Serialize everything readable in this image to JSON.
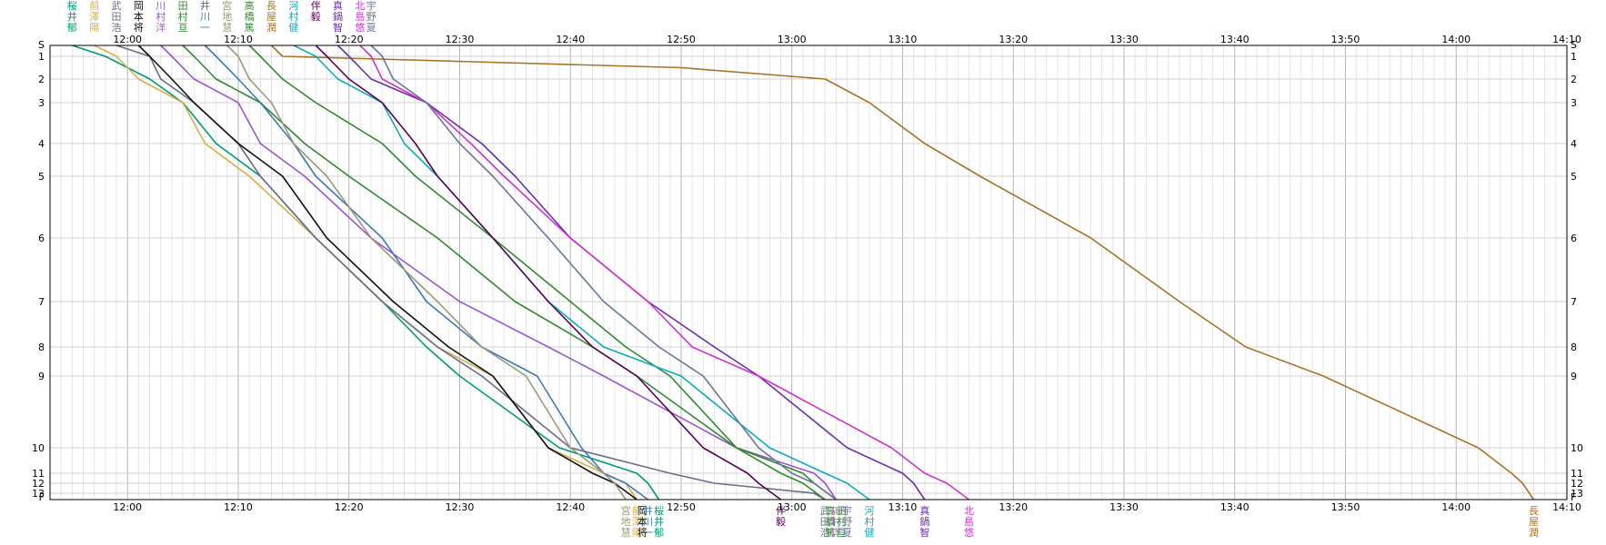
{
  "chart_data": {
    "type": "line",
    "title": "",
    "xlabel": "",
    "ylabel": "",
    "grid": true,
    "x_axis": {
      "start": "11:53",
      "end": "14:10",
      "tick_labels": [
        "12:00",
        "12:10",
        "12:20",
        "12:30",
        "12:40",
        "12:50",
        "13:00",
        "13:10",
        "13:20",
        "13:30",
        "13:40",
        "13:50",
        "14:00",
        "14:10"
      ]
    },
    "y_axis": {
      "inverted": true,
      "categories": [
        "S",
        "1",
        "2",
        "3",
        "4",
        "5",
        "6",
        "7",
        "8",
        "9",
        "10",
        "11",
        "12",
        "13",
        "F"
      ]
    },
    "series": [
      {
        "name": "桜井郁",
        "color": "#009977",
        "points": [
          [
            "11:55",
            "S"
          ],
          [
            "11:58",
            "1"
          ],
          [
            "12:02",
            "2"
          ],
          [
            "12:05",
            "3"
          ],
          [
            "12:08",
            "4"
          ],
          [
            "12:12",
            "5"
          ],
          [
            "12:17",
            "6"
          ],
          [
            "12:23",
            "7"
          ],
          [
            "12:27",
            "8"
          ],
          [
            "12:30",
            "9"
          ],
          [
            "12:39",
            "10"
          ],
          [
            "12:46",
            "11"
          ],
          [
            "12:47",
            "12"
          ],
          [
            "12:48",
            "F"
          ]
        ]
      },
      {
        "name": "前澤陽",
        "color": "#d4b04a",
        "points": [
          [
            "11:57",
            "S"
          ],
          [
            "11:59",
            "1"
          ],
          [
            "12:01",
            "2"
          ],
          [
            "12:05",
            "3"
          ],
          [
            "12:07",
            "4"
          ],
          [
            "12:11",
            "5"
          ],
          [
            "12:17",
            "6"
          ],
          [
            "12:23",
            "7"
          ],
          [
            "12:28",
            "8"
          ],
          [
            "12:33",
            "9"
          ],
          [
            "12:38",
            "10"
          ],
          [
            "12:43",
            "11"
          ],
          [
            "12:45",
            "12"
          ],
          [
            "12:46",
            "F"
          ]
        ]
      },
      {
        "name": "武田浩",
        "color": "#6b6b8c",
        "points": [
          [
            "11:59",
            "S"
          ],
          [
            "12:02",
            "1"
          ],
          [
            "12:03",
            "2"
          ],
          [
            "12:06",
            "3"
          ],
          [
            "12:10",
            "4"
          ],
          [
            "12:12",
            "5"
          ],
          [
            "12:17",
            "6"
          ],
          [
            "12:23",
            "7"
          ],
          [
            "12:28",
            "8"
          ],
          [
            "12:32",
            "9"
          ],
          [
            "12:40",
            "10"
          ],
          [
            "12:49",
            "11"
          ],
          [
            "12:53",
            "12"
          ],
          [
            "13:02",
            "13"
          ],
          [
            "13:03",
            "F"
          ]
        ]
      },
      {
        "name": "岡本将",
        "color": "#111111",
        "points": [
          [
            "12:01",
            "S"
          ],
          [
            "12:02",
            "1"
          ],
          [
            "12:04",
            "2"
          ],
          [
            "12:06",
            "3"
          ],
          [
            "12:10",
            "4"
          ],
          [
            "12:14",
            "5"
          ],
          [
            "12:18",
            "6"
          ],
          [
            "12:24",
            "7"
          ],
          [
            "12:29",
            "8"
          ],
          [
            "12:33",
            "9"
          ],
          [
            "12:38",
            "10"
          ],
          [
            "12:42",
            "11"
          ],
          [
            "12:44",
            "12"
          ],
          [
            "12:46",
            "F"
          ]
        ]
      },
      {
        "name": "川村洋",
        "color": "#9955cc",
        "points": [
          [
            "12:03",
            "S"
          ],
          [
            "12:04",
            "1"
          ],
          [
            "12:06",
            "2"
          ],
          [
            "12:10",
            "3"
          ],
          [
            "12:12",
            "4"
          ],
          [
            "12:16",
            "5"
          ],
          [
            "12:22",
            "6"
          ],
          [
            "12:30",
            "7"
          ],
          [
            "12:38",
            "8"
          ],
          [
            "12:43",
            "9"
          ],
          [
            "12:55",
            "10"
          ],
          [
            "13:02",
            "11"
          ],
          [
            "13:03",
            "12"
          ],
          [
            "13:04",
            "F"
          ]
        ]
      },
      {
        "name": "田村亘",
        "color": "#2f8a2f",
        "points": [
          [
            "12:05",
            "S"
          ],
          [
            "12:06",
            "1"
          ],
          [
            "12:08",
            "2"
          ],
          [
            "12:12",
            "3"
          ],
          [
            "12:16",
            "4"
          ],
          [
            "12:20",
            "5"
          ],
          [
            "12:28",
            "6"
          ],
          [
            "12:35",
            "7"
          ],
          [
            "12:42",
            "8"
          ],
          [
            "12:46",
            "9"
          ],
          [
            "12:55",
            "10"
          ],
          [
            "13:01",
            "11"
          ],
          [
            "13:02",
            "12"
          ],
          [
            "13:04",
            "F"
          ]
        ]
      },
      {
        "name": "井川一",
        "color": "#3d7ab5",
        "points": [
          [
            "12:07",
            "S"
          ],
          [
            "12:08",
            "1"
          ],
          [
            "12:10",
            "2"
          ],
          [
            "12:12",
            "3"
          ],
          [
            "12:15",
            "4"
          ],
          [
            "12:17",
            "5"
          ],
          [
            "12:23",
            "6"
          ],
          [
            "12:27",
            "7"
          ],
          [
            "12:32",
            "8"
          ],
          [
            "12:37",
            "9"
          ],
          [
            "12:41",
            "10"
          ],
          [
            "12:43",
            "11"
          ],
          [
            "12:45",
            "12"
          ],
          [
            "12:47",
            "F"
          ]
        ]
      },
      {
        "name": "宮地慧",
        "color": "#999977",
        "points": [
          [
            "12:09",
            "S"
          ],
          [
            "12:10",
            "1"
          ],
          [
            "12:11",
            "2"
          ],
          [
            "12:13",
            "3"
          ],
          [
            "12:15",
            "4"
          ],
          [
            "12:18",
            "5"
          ],
          [
            "12:22",
            "6"
          ],
          [
            "12:28",
            "7"
          ],
          [
            "12:32",
            "8"
          ],
          [
            "12:36",
            "9"
          ],
          [
            "12:40",
            "10"
          ],
          [
            "12:43",
            "11"
          ],
          [
            "12:44",
            "12"
          ],
          [
            "12:45",
            "F"
          ]
        ]
      },
      {
        "name": "高橋篤",
        "color": "#2f8a2f",
        "points": [
          [
            "12:11",
            "S"
          ],
          [
            "12:12",
            "1"
          ],
          [
            "12:14",
            "2"
          ],
          [
            "12:17",
            "3"
          ],
          [
            "12:23",
            "4"
          ],
          [
            "12:26",
            "5"
          ],
          [
            "12:33",
            "6"
          ],
          [
            "12:40",
            "7"
          ],
          [
            "12:45",
            "8"
          ],
          [
            "12:49",
            "9"
          ],
          [
            "12:55",
            "10"
          ],
          [
            "12:59",
            "11"
          ],
          [
            "13:01",
            "12"
          ],
          [
            "13:03",
            "F"
          ]
        ]
      },
      {
        "name": "長屋潤",
        "color": "#a87228",
        "points": [
          [
            "12:13",
            "S"
          ],
          [
            "12:14",
            "1"
          ],
          [
            "12:50",
            "1.5"
          ],
          [
            "13:03",
            "2"
          ],
          [
            "13:07",
            "3"
          ],
          [
            "13:12",
            "4"
          ],
          [
            "13:17",
            "5"
          ],
          [
            "13:27",
            "6"
          ],
          [
            "13:35",
            "7"
          ],
          [
            "13:41",
            "8"
          ],
          [
            "13:48",
            "9"
          ],
          [
            "14:02",
            "10"
          ],
          [
            "14:05",
            "11"
          ],
          [
            "14:06",
            "12"
          ],
          [
            "14:07",
            "F"
          ]
        ]
      },
      {
        "name": "河村健",
        "color": "#11aabb",
        "points": [
          [
            "12:15",
            "S"
          ],
          [
            "12:17",
            "1"
          ],
          [
            "12:19",
            "2"
          ],
          [
            "12:23",
            "3"
          ],
          [
            "12:25",
            "4"
          ],
          [
            "12:28",
            "5"
          ],
          [
            "12:33",
            "6"
          ],
          [
            "12:38",
            "7"
          ],
          [
            "12:43",
            "8"
          ],
          [
            "12:50",
            "9"
          ],
          [
            "12:58",
            "10"
          ],
          [
            "13:03",
            "11"
          ],
          [
            "13:05",
            "12"
          ],
          [
            "13:07",
            "F"
          ]
        ]
      },
      {
        "name": "伴毅",
        "color": "#550055",
        "points": [
          [
            "12:17",
            "S"
          ],
          [
            "12:18",
            "1"
          ],
          [
            "12:20",
            "2"
          ],
          [
            "12:23",
            "3"
          ],
          [
            "12:26",
            "4"
          ],
          [
            "12:28",
            "5"
          ],
          [
            "12:33",
            "6"
          ],
          [
            "12:38",
            "7"
          ],
          [
            "12:42",
            "8"
          ],
          [
            "12:46",
            "9"
          ],
          [
            "12:52",
            "10"
          ],
          [
            "12:56",
            "11"
          ],
          [
            "12:57",
            "12"
          ],
          [
            "12:59",
            "F"
          ]
        ]
      },
      {
        "name": "真鍋智",
        "color": "#6a2fa8",
        "points": [
          [
            "12:19",
            "S"
          ],
          [
            "12:20",
            "1"
          ],
          [
            "12:22",
            "2"
          ],
          [
            "12:27",
            "3"
          ],
          [
            "12:32",
            "4"
          ],
          [
            "12:35",
            "5"
          ],
          [
            "12:40",
            "6"
          ],
          [
            "12:47",
            "7"
          ],
          [
            "12:53",
            "8"
          ],
          [
            "12:57",
            "9"
          ],
          [
            "13:05",
            "10"
          ],
          [
            "13:10",
            "11"
          ],
          [
            "13:11",
            "12"
          ],
          [
            "13:12",
            "F"
          ]
        ]
      },
      {
        "name": "北島悠",
        "color": "#cc33cc",
        "points": [
          [
            "12:21",
            "S"
          ],
          [
            "12:22",
            "1"
          ],
          [
            "12:23",
            "2"
          ],
          [
            "12:27",
            "3"
          ],
          [
            "12:31",
            "4"
          ],
          [
            "12:34",
            "5"
          ],
          [
            "12:40",
            "6"
          ],
          [
            "12:47",
            "7"
          ],
          [
            "12:51",
            "8"
          ],
          [
            "12:57",
            "9"
          ],
          [
            "13:09",
            "10"
          ],
          [
            "13:12",
            "11"
          ],
          [
            "13:14",
            "12"
          ],
          [
            "13:16",
            "F"
          ]
        ]
      },
      {
        "name": "宇野夏",
        "color": "#667799",
        "points": [
          [
            "12:22",
            "S"
          ],
          [
            "12:23",
            "1"
          ],
          [
            "12:24",
            "2"
          ],
          [
            "12:27",
            "3"
          ],
          [
            "12:30",
            "4"
          ],
          [
            "12:33",
            "5"
          ],
          [
            "12:38",
            "6"
          ],
          [
            "12:43",
            "7"
          ],
          [
            "12:48",
            "8"
          ],
          [
            "12:52",
            "9"
          ],
          [
            "12:57",
            "10"
          ],
          [
            "13:00",
            "11"
          ],
          [
            "13:02",
            "12"
          ],
          [
            "13:04",
            "F"
          ]
        ]
      }
    ]
  }
}
